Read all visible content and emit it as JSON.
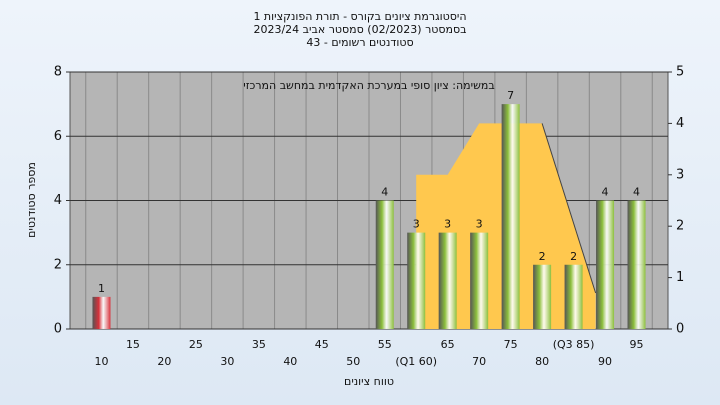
{
  "chart_data": {
    "type": "bar",
    "title": [
      "היסטוגרמת ציונים בקורס - תורת הפונקציות 1",
      "בסמסטר  (02/2023)  סמסטר אביב 2023/24",
      "סטודנטים רשומים - 43"
    ],
    "annotation": "במשימה: ציון סופי במערכת האקדמית במחשב המרכזי",
    "x_label": "טווח ציונים",
    "y_label": "מספר סטודנטים",
    "categories": [
      "10",
      "15",
      "20",
      "25",
      "30",
      "35",
      "40",
      "45",
      "50",
      "55",
      "(Q1 60)",
      "65",
      "70",
      "75",
      "80",
      "(Q3 85)",
      "90",
      "95"
    ],
    "values": [
      1,
      0,
      0,
      0,
      0,
      0,
      0,
      0,
      0,
      4,
      3,
      3,
      3,
      7,
      2,
      2,
      4,
      4
    ],
    "colors": [
      "#d8303a",
      "#8cbf3c",
      "#8cbf3c",
      "#8cbf3c",
      "#8cbf3c",
      "#8cbf3c",
      "#8cbf3c",
      "#8cbf3c",
      "#8cbf3c",
      "#8cbf3c",
      "#8cbf3c",
      "#8cbf3c",
      "#8cbf3c",
      "#8cbf3c",
      "#8cbf3c",
      "#8cbf3c",
      "#8cbf3c",
      "#8cbf3c"
    ],
    "area": {
      "x": [
        60,
        65,
        70,
        80,
        88.5
      ],
      "values": [
        3,
        3,
        4,
        4,
        0.7
      ],
      "color": "#ffc84e",
      "axis": "y2"
    },
    "ylim": [
      0,
      8
    ],
    "yticks": [
      0,
      2,
      4,
      6,
      8
    ],
    "y2lim": [
      0,
      5
    ],
    "y2ticks": [
      0,
      1,
      2,
      3,
      4,
      5
    ],
    "grid": true
  }
}
